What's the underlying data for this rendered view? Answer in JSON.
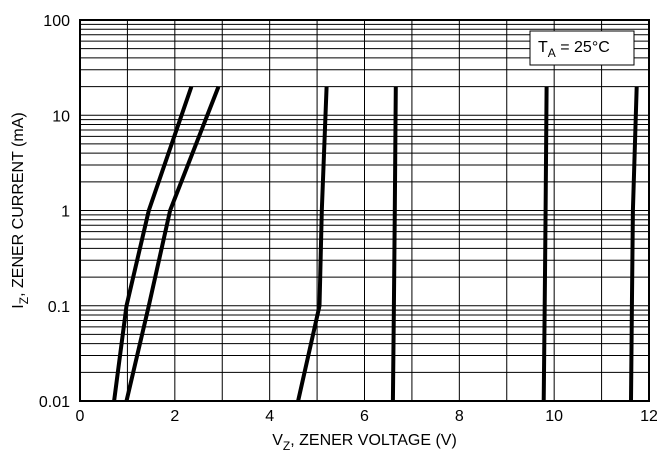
{
  "chart_data": {
    "type": "line",
    "title": "",
    "xlabel": {
      "main": "V",
      "sub": "Z",
      "rest": ", ZENER VOLTAGE (V)"
    },
    "ylabel": {
      "main": "I",
      "sub": "Z",
      "rest": ", ZENER CURRENT (mA)"
    },
    "xlim": [
      0,
      12
    ],
    "ylim": [
      0.01,
      100
    ],
    "yscale": "log",
    "xticks": [
      "0",
      "2",
      "4",
      "6",
      "8",
      "10",
      "12"
    ],
    "yticks": [
      "0.01",
      "0.1",
      "1",
      "10",
      "100"
    ],
    "grid": true,
    "annotation": {
      "main": "T",
      "sub": "A",
      "rest": " = 25°C"
    },
    "series": [
      {
        "x": [
          0.72,
          0.98,
          1.45,
          2.35
        ],
        "y": [
          0.01,
          0.1,
          1,
          20
        ]
      },
      {
        "x": [
          0.98,
          1.45,
          1.9,
          2.92
        ],
        "y": [
          0.01,
          0.1,
          1,
          20
        ]
      },
      {
        "x": [
          4.6,
          5.05,
          5.1,
          5.2
        ],
        "y": [
          0.01,
          0.1,
          1,
          20
        ]
      },
      {
        "x": [
          6.6,
          6.62,
          6.64,
          6.66
        ],
        "y": [
          0.01,
          0.1,
          1,
          20
        ]
      },
      {
        "x": [
          9.78,
          9.8,
          9.82,
          9.84
        ],
        "y": [
          0.01,
          0.1,
          1,
          20
        ]
      },
      {
        "x": [
          11.62,
          11.64,
          11.66,
          11.74
        ],
        "y": [
          0.01,
          0.1,
          1,
          20
        ]
      }
    ]
  }
}
